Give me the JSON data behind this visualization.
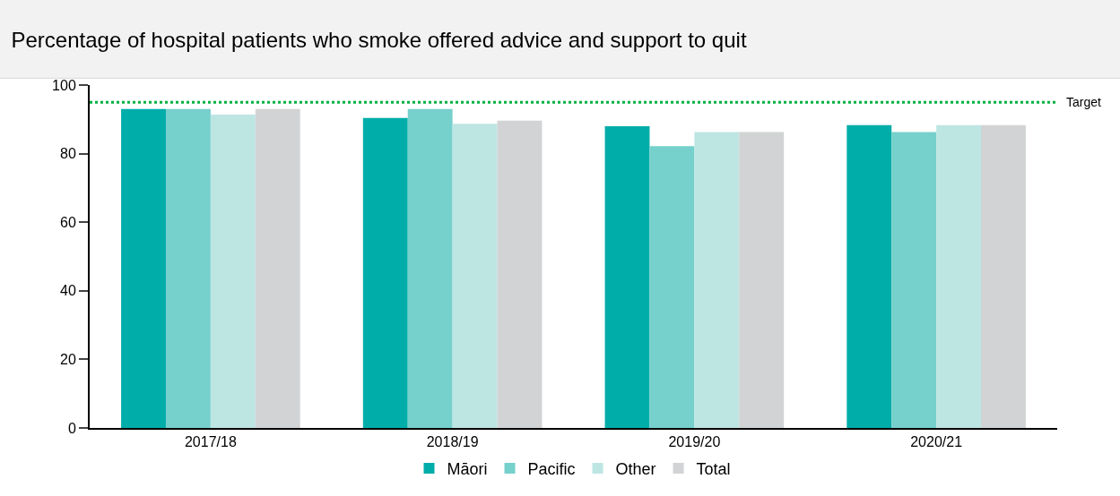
{
  "chart_data": {
    "type": "bar",
    "title": "Percentage of hospital patients who smoke offered advice and support to quit",
    "categories": [
      "2017/18",
      "2018/19",
      "2019/20",
      "2020/21"
    ],
    "series": [
      {
        "name": "Māori",
        "color": "#00ada9",
        "values": [
          93,
          90.4,
          88,
          88.3
        ]
      },
      {
        "name": "Pacific",
        "color": "#76d0cc",
        "values": [
          93,
          93,
          82.2,
          86.3
        ]
      },
      {
        "name": "Other",
        "color": "#bde6e3",
        "values": [
          91.4,
          88.7,
          86.3,
          88.3
        ]
      },
      {
        "name": "Total",
        "color": "#d1d3d4",
        "values": [
          93,
          89.6,
          86.3,
          88.3
        ]
      }
    ],
    "ylim": [
      0,
      100
    ],
    "yticks": [
      0,
      20,
      40,
      60,
      80,
      100
    ],
    "legend": "bottom",
    "ref_lines": [
      {
        "axis": "y",
        "value": 95,
        "label": "Target",
        "color": "#00b140",
        "line_style": "dotted"
      }
    ]
  }
}
